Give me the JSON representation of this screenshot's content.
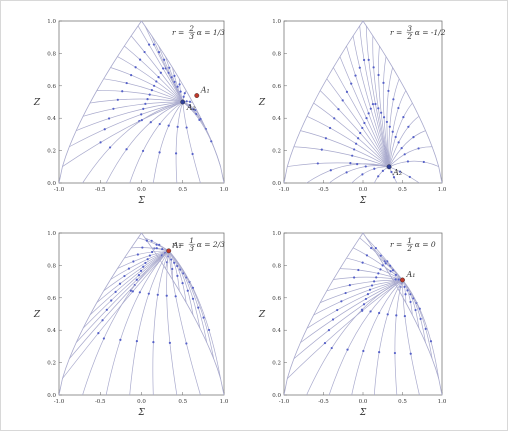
{
  "figure": {
    "background": "#ffffff"
  },
  "colors": {
    "stream": "#a9aacd",
    "arrow": "#5560c8",
    "fixed_red": "#c0392b",
    "fixed_blue": "#2f3f9a",
    "axis": "#666666"
  },
  "chart_data": [
    {
      "type": "line",
      "panel": "top-left",
      "xlabel": "Σ",
      "ylabel": "Z",
      "xlim": [
        -1.0,
        1.0
      ],
      "ylim": [
        0.0,
        1.0
      ],
      "xticks": [
        "-1.0",
        "-0.5",
        "0.0",
        "0.5",
        "1.0"
      ],
      "yticks": [
        "0.0",
        "0.2",
        "0.4",
        "0.6",
        "0.8",
        "1.0"
      ],
      "params": {
        "r": "r = 2/3",
        "alpha": "α = 1/3"
      },
      "boundary_peak_x": 0.0,
      "sink": [
        0.5,
        0.5
      ],
      "fixed_points": [
        {
          "label": "A₁",
          "x": 0.67,
          "y": 0.54,
          "color": "red"
        },
        {
          "label": "A₂",
          "x": 0.5,
          "y": 0.5,
          "color": "blue"
        }
      ]
    },
    {
      "type": "line",
      "panel": "top-right",
      "xlabel": "Σ",
      "ylabel": "Z",
      "xlim": [
        -1.0,
        1.0
      ],
      "ylim": [
        0.0,
        1.0
      ],
      "xticks": [
        "-1.0",
        "-0.5",
        "0.0",
        "0.5",
        "1.0"
      ],
      "yticks": [
        "0.0",
        "0.2",
        "0.4",
        "0.6",
        "0.8",
        "1.0"
      ],
      "params": {
        "r": "r = 3/2",
        "alpha": "α = -1/2"
      },
      "boundary_peak_x": 0.0,
      "sink": [
        0.33,
        0.1
      ],
      "fixed_points": [
        {
          "label": "A₂",
          "x": 0.33,
          "y": 0.1,
          "color": "blue"
        }
      ]
    },
    {
      "type": "line",
      "panel": "bottom-left",
      "xlabel": "Σ",
      "ylabel": "Z",
      "xlim": [
        -1.0,
        1.0
      ],
      "ylim": [
        0.0,
        1.0
      ],
      "xticks": [
        "-1.0",
        "-0.5",
        "0.0",
        "0.5",
        "1.0"
      ],
      "yticks": [
        "0.0",
        "0.2",
        "0.4",
        "0.6",
        "0.8",
        "1.0"
      ],
      "params": {
        "r": "r = 1/3",
        "alpha": "α = 2/3"
      },
      "boundary_peak_x": 0.0,
      "sink": [
        0.33,
        0.89
      ],
      "fixed_points": [
        {
          "label": "A₁",
          "x": 0.33,
          "y": 0.89,
          "color": "red"
        }
      ]
    },
    {
      "type": "line",
      "panel": "bottom-right",
      "xlabel": "Σ",
      "ylabel": "Z",
      "xlim": [
        -1.0,
        1.0
      ],
      "ylim": [
        0.0,
        1.0
      ],
      "xticks": [
        "-1.0",
        "-0.5",
        "0.0",
        "0.5",
        "1.0"
      ],
      "yticks": [
        "0.0",
        "0.2",
        "0.4",
        "0.6",
        "0.8",
        "1.0"
      ],
      "params": {
        "r": "r = 1/2",
        "alpha": "α = 0"
      },
      "boundary_peak_x": 0.0,
      "sink": [
        0.5,
        0.71
      ],
      "fixed_points": [
        {
          "label": "A₁",
          "x": 0.5,
          "y": 0.71,
          "color": "red"
        }
      ]
    }
  ]
}
